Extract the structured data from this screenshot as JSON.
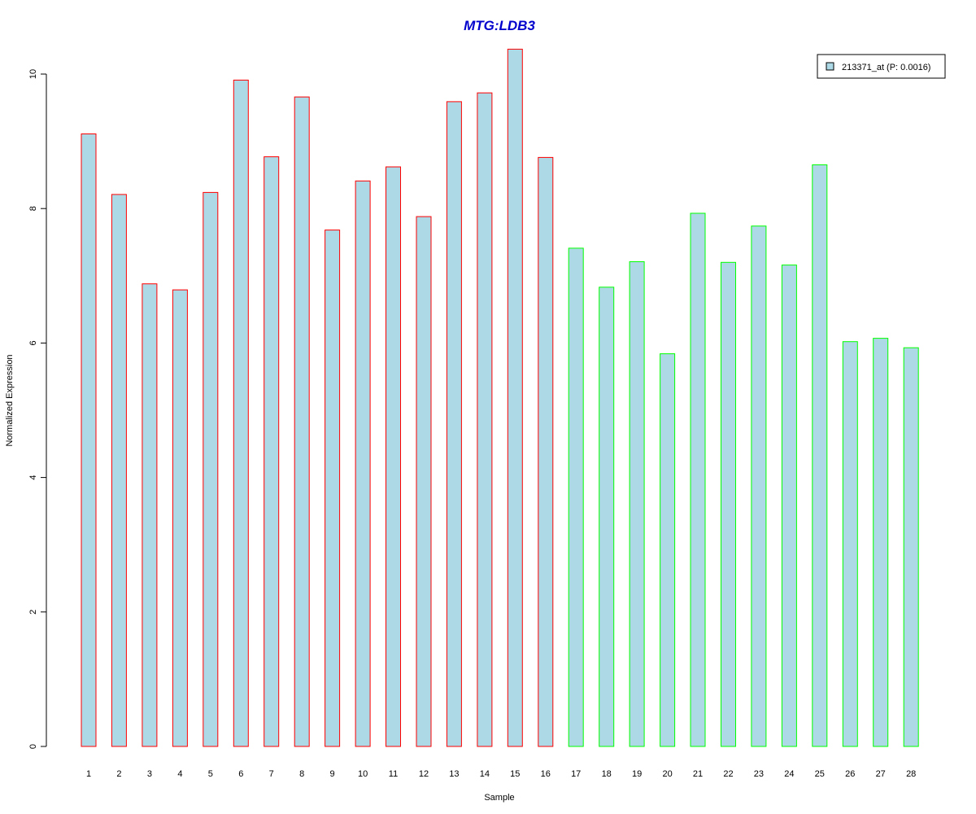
{
  "colors": {
    "bar_fill": "#add8e6",
    "group1_border": "#ff0000",
    "group2_border": "#00ff00",
    "title": "#0000cd",
    "axis": "#000000"
  },
  "chart_data": {
    "type": "bar",
    "title": "MTG:LDB3",
    "xlabel": "Sample",
    "ylabel": "Normalized Expression",
    "ylim": [
      0,
      10
    ],
    "yticks": [
      "0",
      "2",
      "4",
      "6",
      "8",
      "10"
    ],
    "grid": false,
    "legend_position": "top-right",
    "legend": [
      {
        "label": "213371_at (P: 0.0016)",
        "color": "#add8e6"
      }
    ],
    "categories": [
      "1",
      "2",
      "3",
      "4",
      "5",
      "6",
      "7",
      "8",
      "9",
      "10",
      "11",
      "12",
      "13",
      "14",
      "15",
      "16",
      "17",
      "18",
      "19",
      "20",
      "21",
      "22",
      "23",
      "24",
      "25",
      "26",
      "27",
      "28"
    ],
    "values": [
      9.11,
      8.21,
      6.88,
      6.79,
      8.24,
      9.91,
      8.77,
      9.66,
      7.68,
      8.41,
      8.62,
      7.88,
      9.59,
      9.72,
      10.37,
      8.76,
      7.41,
      6.83,
      7.21,
      5.84,
      7.93,
      7.2,
      7.74,
      7.16,
      8.65,
      6.02,
      6.07,
      5.93
    ],
    "groups": [
      "1",
      "1",
      "1",
      "1",
      "1",
      "1",
      "1",
      "1",
      "1",
      "1",
      "1",
      "1",
      "1",
      "1",
      "1",
      "1",
      "2",
      "2",
      "2",
      "2",
      "2",
      "2",
      "2",
      "2",
      "2",
      "2",
      "2",
      "2"
    ]
  }
}
